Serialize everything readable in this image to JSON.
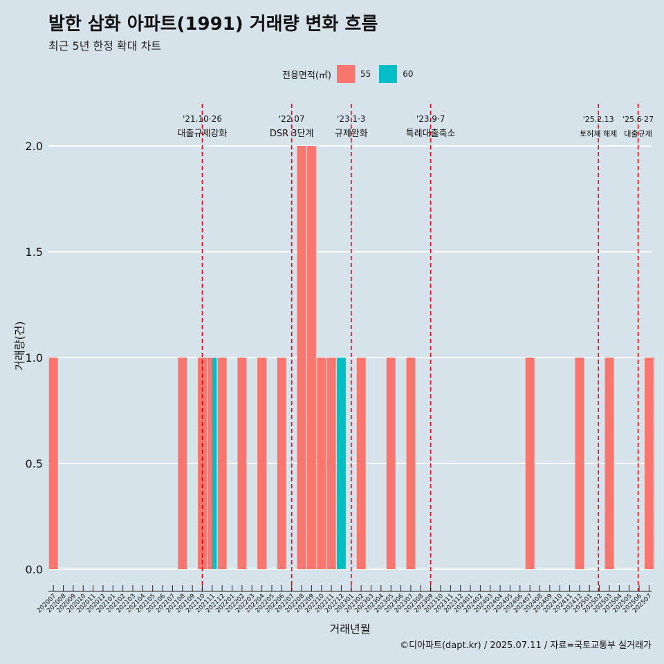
{
  "title": "발한 삼화 아파트(1991) 거래량 변화 흐름",
  "subtitle": "최근 5년 한정 확대 차트",
  "caption": "©디아파트(dapt.kr) / 2025.07.11 / 자료=국토교통부 실거래가",
  "legend": {
    "title": "전용면적(㎡)",
    "items": [
      {
        "label": "55",
        "color": "#f8766d"
      },
      {
        "label": "60",
        "color": "#00bfc4"
      }
    ]
  },
  "chart_data": {
    "type": "bar",
    "stacked": true,
    "xlabel": "거래년월",
    "ylabel": "거래량(건)",
    "ylim": [
      0,
      2.0
    ],
    "yticks": [
      0.0,
      0.5,
      1.0,
      1.5,
      2.0
    ],
    "ytick_labels": [
      "0.0",
      "0.5",
      "1.0",
      "1.5",
      "2.0"
    ],
    "grid": true,
    "legend_position": "top",
    "categories": [
      "202007",
      "202008",
      "202009",
      "202010",
      "202011",
      "202012",
      "202101",
      "202102",
      "202103",
      "202104",
      "202105",
      "202106",
      "202107",
      "202108",
      "202109",
      "202110",
      "202111",
      "202112",
      "202201",
      "202202",
      "202203",
      "202204",
      "202205",
      "202206",
      "202207",
      "202208",
      "202209",
      "202210",
      "202211",
      "202212",
      "202301",
      "202302",
      "202303",
      "202304",
      "202305",
      "202306",
      "202307",
      "202308",
      "202309",
      "202310",
      "202311",
      "202312",
      "202401",
      "202402",
      "202403",
      "202404",
      "202405",
      "202406",
      "202407",
      "202408",
      "202409",
      "202410",
      "202411",
      "202412",
      "202501",
      "202502",
      "202503",
      "202504",
      "202505",
      "202506",
      "202507"
    ],
    "bars": [
      {
        "month": "202007",
        "area": "55",
        "value": 1
      },
      {
        "month": "202108",
        "area": "55",
        "value": 1
      },
      {
        "month": "202110",
        "area": "55",
        "value": 1
      },
      {
        "month": "202111",
        "area": "55",
        "value": 1
      },
      {
        "month": "202111",
        "area": "60",
        "value": 1
      },
      {
        "month": "202112",
        "area": "55",
        "value": 1
      },
      {
        "month": "202202",
        "area": "55",
        "value": 1
      },
      {
        "month": "202204",
        "area": "55",
        "value": 1
      },
      {
        "month": "202206",
        "area": "55",
        "value": 1
      },
      {
        "month": "202208",
        "area": "55",
        "value": 2
      },
      {
        "month": "202209",
        "area": "55",
        "value": 2
      },
      {
        "month": "202210",
        "area": "55",
        "value": 1
      },
      {
        "month": "202211",
        "area": "55",
        "value": 1
      },
      {
        "month": "202212",
        "area": "60",
        "value": 1
      },
      {
        "month": "202302",
        "area": "55",
        "value": 1
      },
      {
        "month": "202305",
        "area": "55",
        "value": 1
      },
      {
        "month": "202307",
        "area": "55",
        "value": 1
      },
      {
        "month": "202407",
        "area": "55",
        "value": 1
      },
      {
        "month": "202412",
        "area": "55",
        "value": 1
      },
      {
        "month": "202503",
        "area": "55",
        "value": 1
      },
      {
        "month": "202507",
        "area": "55",
        "value": 1
      }
    ],
    "events": [
      {
        "x": 15.5,
        "date": "'21.10·26",
        "label": "대출규제강화"
      },
      {
        "x": 24.5,
        "date": "'22.07",
        "label": "DSR 3단계"
      },
      {
        "x": 30.5,
        "date": "'23.1·3",
        "label": "규제완화"
      },
      {
        "x": 38.5,
        "date": "'23.9·7",
        "label": "특례대출축소"
      },
      {
        "x": 55.4,
        "date": "'25.2.13",
        "label": "토허제 해제"
      },
      {
        "x": 59.4,
        "date": "'25.6·27",
        "label": "대출규제"
      }
    ]
  }
}
